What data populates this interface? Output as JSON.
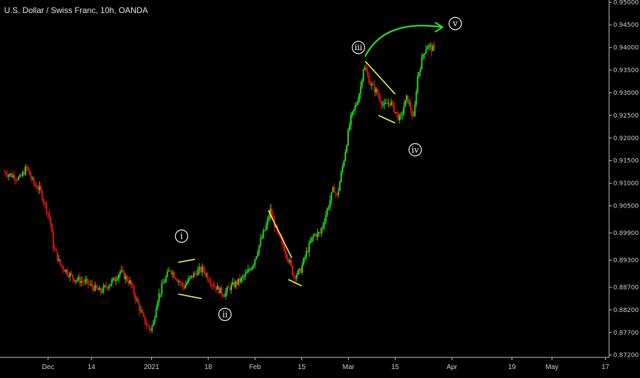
{
  "header": {
    "title": "U.S. Dollar / Swiss Franc, 10h, OANDA"
  },
  "chart_data": {
    "type": "candlestick",
    "symbol": "U.S. Dollar / Swiss Franc",
    "interval": "10h",
    "source": "OANDA",
    "ylim": [
      0.8715,
      0.9505
    ],
    "y_ticks": [
      "0.95000",
      "0.94500",
      "0.94000",
      "0.93500",
      "0.93000",
      "0.92500",
      "0.92000",
      "0.91500",
      "0.91000",
      "0.90500",
      "0.89900",
      "0.89300",
      "0.88700",
      "0.88200",
      "0.87700",
      "0.87200"
    ],
    "x_ticks": [
      {
        "label": "Dec",
        "day": 0
      },
      {
        "label": "14",
        "day": 13
      },
      {
        "label": "2021",
        "day": 31
      },
      {
        "label": "18",
        "day": 48
      },
      {
        "label": "Feb",
        "day": 62
      },
      {
        "label": "15",
        "day": 76
      },
      {
        "label": "Mar",
        "day": 90
      },
      {
        "label": "15",
        "day": 104
      },
      {
        "label": "Apr",
        "day": 121
      },
      {
        "label": "19",
        "day": 139
      },
      {
        "label": "May",
        "day": 151
      },
      {
        "label": "17",
        "day": 167
      }
    ],
    "price_path": [
      {
        "day": -13,
        "price": 0.9125
      },
      {
        "day": -8,
        "price": 0.911
      },
      {
        "day": -6,
        "price": 0.9135
      },
      {
        "day": -4,
        "price": 0.91
      },
      {
        "day": -2,
        "price": 0.9085
      },
      {
        "day": 1,
        "price": 0.902
      },
      {
        "day": 2,
        "price": 0.896
      },
      {
        "day": 4,
        "price": 0.892
      },
      {
        "day": 8,
        "price": 0.889
      },
      {
        "day": 12,
        "price": 0.888
      },
      {
        "day": 16,
        "price": 0.886
      },
      {
        "day": 20,
        "price": 0.8885
      },
      {
        "day": 22,
        "price": 0.8905
      },
      {
        "day": 25,
        "price": 0.888
      },
      {
        "day": 27,
        "price": 0.884
      },
      {
        "day": 29,
        "price": 0.88
      },
      {
        "day": 31,
        "price": 0.8775
      },
      {
        "day": 32,
        "price": 0.879
      },
      {
        "day": 33,
        "price": 0.884
      },
      {
        "day": 35,
        "price": 0.888
      },
      {
        "day": 37,
        "price": 0.891
      },
      {
        "day": 39,
        "price": 0.889
      },
      {
        "day": 41,
        "price": 0.887
      },
      {
        "day": 43,
        "price": 0.889
      },
      {
        "day": 45,
        "price": 0.8905
      },
      {
        "day": 47,
        "price": 0.891
      },
      {
        "day": 48,
        "price": 0.8895
      },
      {
        "day": 50,
        "price": 0.8875
      },
      {
        "day": 53,
        "price": 0.8855
      },
      {
        "day": 55,
        "price": 0.887
      },
      {
        "day": 58,
        "price": 0.8885
      },
      {
        "day": 60,
        "price": 0.89
      },
      {
        "day": 62,
        "price": 0.8925
      },
      {
        "day": 64,
        "price": 0.897
      },
      {
        "day": 66,
        "price": 0.901
      },
      {
        "day": 67,
        "price": 0.904
      },
      {
        "day": 69,
        "price": 0.899
      },
      {
        "day": 71,
        "price": 0.896
      },
      {
        "day": 73,
        "price": 0.892
      },
      {
        "day": 74,
        "price": 0.8895
      },
      {
        "day": 76,
        "price": 0.8905
      },
      {
        "day": 78,
        "price": 0.895
      },
      {
        "day": 80,
        "price": 0.8985
      },
      {
        "day": 82,
        "price": 0.899
      },
      {
        "day": 84,
        "price": 0.904
      },
      {
        "day": 86,
        "price": 0.909
      },
      {
        "day": 87,
        "price": 0.907
      },
      {
        "day": 89,
        "price": 0.915
      },
      {
        "day": 91,
        "price": 0.924
      },
      {
        "day": 93,
        "price": 0.928
      },
      {
        "day": 94,
        "price": 0.931
      },
      {
        "day": 95,
        "price": 0.936
      },
      {
        "day": 97,
        "price": 0.932
      },
      {
        "day": 99,
        "price": 0.93
      },
      {
        "day": 101,
        "price": 0.927
      },
      {
        "day": 103,
        "price": 0.928
      },
      {
        "day": 105,
        "price": 0.925
      },
      {
        "day": 106,
        "price": 0.924
      },
      {
        "day": 107,
        "price": 0.927
      },
      {
        "day": 108,
        "price": 0.929
      },
      {
        "day": 110,
        "price": 0.924
      },
      {
        "day": 111,
        "price": 0.933
      },
      {
        "day": 113,
        "price": 0.939
      },
      {
        "day": 114,
        "price": 0.9405
      },
      {
        "day": 116,
        "price": 0.9395
      }
    ],
    "wave_labels": [
      {
        "label": "i",
        "day": 40,
        "price": 0.8983
      },
      {
        "label": "ii",
        "day": 53,
        "price": 0.881
      },
      {
        "label": "iii",
        "day": 93,
        "price": 0.94
      },
      {
        "label": "iv",
        "day": 110,
        "price": 0.9174
      },
      {
        "label": "v",
        "day": 122,
        "price": 0.9453
      }
    ],
    "trendlines": [
      {
        "from": {
          "day": 39,
          "price": 0.8925
        },
        "to": {
          "day": 44,
          "price": 0.8932
        }
      },
      {
        "from": {
          "day": 39,
          "price": 0.8855
        },
        "to": {
          "day": 46,
          "price": 0.8845
        }
      },
      {
        "from": {
          "day": 66,
          "price": 0.904
        },
        "to": {
          "day": 73,
          "price": 0.8935
        }
      },
      {
        "from": {
          "day": 72,
          "price": 0.8887
        },
        "to": {
          "day": 76,
          "price": 0.8873
        }
      },
      {
        "from": {
          "day": 95,
          "price": 0.937
        },
        "to": {
          "day": 104,
          "price": 0.9297
        }
      },
      {
        "from": {
          "day": 99,
          "price": 0.925
        },
        "to": {
          "day": 104,
          "price": 0.9233
        }
      }
    ],
    "projection_arrow": {
      "from": {
        "day": 95,
        "price": 0.938
      },
      "to": {
        "day": 118,
        "price": 0.9445
      }
    },
    "colors": {
      "up": "#22dd22",
      "down": "#ee1111",
      "trendline": "#ffff44",
      "arrow": "#33dd33",
      "background": "#000000",
      "axis_text": "#cfcfcf"
    }
  }
}
